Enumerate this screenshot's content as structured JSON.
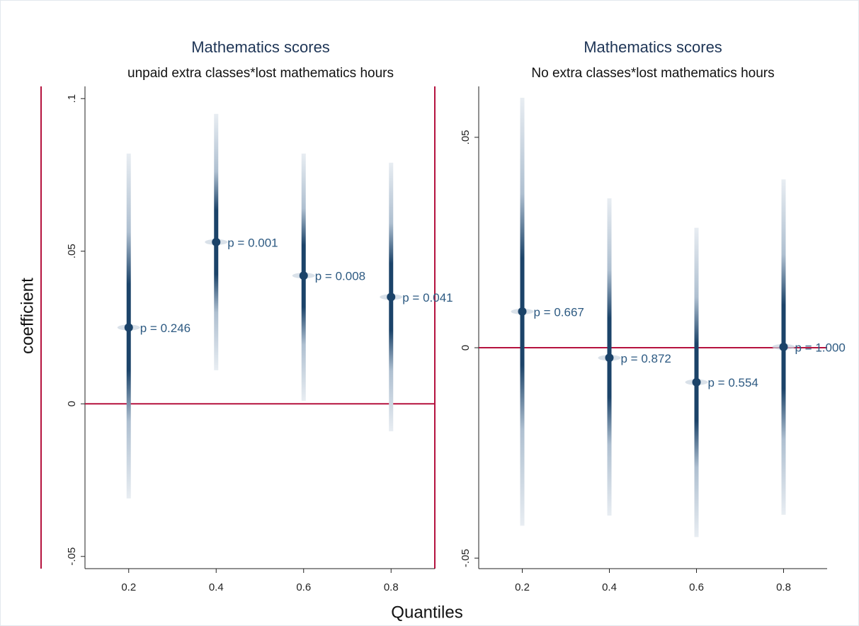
{
  "chart_data": [
    {
      "type": "coefplot",
      "title": "Mathematics scores",
      "subtitle": "unpaid extra classes*lost mathematics hours",
      "xlabel": "Quantiles",
      "ylabel": "coefficient",
      "x": [
        0.2,
        0.4,
        0.6,
        0.8
      ],
      "values": [
        0.025,
        0.053,
        0.042,
        0.035
      ],
      "lower": [
        -0.031,
        0.011,
        0.001,
        -0.009
      ],
      "upper": [
        0.082,
        0.095,
        0.082,
        0.079
      ],
      "annotations": [
        "p = 0.246",
        "p = 0.001",
        "p = 0.008",
        "p = 0.041"
      ],
      "color": "#1b4369",
      "refline": 0,
      "refline_color": "#b5123e",
      "xlim": [
        0.1,
        0.9
      ],
      "xticks": [
        0.2,
        0.4,
        0.6,
        0.8
      ],
      "ylim": [
        -0.054,
        0.104
      ],
      "yticks": [
        {
          "value": -0.05,
          "label": "-.05"
        },
        0,
        {
          "value": 0.05,
          "label": ".05"
        },
        {
          "value": 0.1,
          "label": ".1"
        }
      ]
    },
    {
      "type": "coefplot",
      "title": "Mathematics scores",
      "subtitle": "No extra classes*lost mathematics hours",
      "x": [
        0.2,
        0.4,
        0.6,
        0.8
      ],
      "values": [
        0.0086,
        -0.0024,
        -0.0082,
        0.0002
      ],
      "lower": [
        -0.0423,
        -0.0399,
        -0.045,
        -0.0397
      ],
      "upper": [
        0.0594,
        0.0355,
        0.0285,
        0.04
      ],
      "annotations": [
        "p = 0.667",
        "p = 0.872",
        "p = 0.554",
        "p = 1.000"
      ],
      "color": "#1b4369",
      "refline": 0,
      "refline_color": "#b5123e",
      "xlim": [
        0.1,
        0.9
      ],
      "xticks": [
        0.2,
        0.4,
        0.6,
        0.8
      ],
      "ylim": [
        -0.0525,
        0.0621
      ],
      "yticks": [
        {
          "value": -0.05,
          "label": "-.05"
        },
        0,
        {
          "value": 0.05,
          "label": ".05"
        }
      ]
    }
  ]
}
